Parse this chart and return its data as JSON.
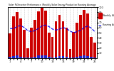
{
  "title": "Solar PV/Inverter Performance  Monthly Solar Energy Production Running Average",
  "bar_values": [
    48,
    82,
    90,
    78,
    55,
    20,
    60,
    75,
    92,
    98,
    93,
    50,
    42,
    72,
    85,
    72,
    60,
    18,
    52,
    70,
    85,
    95,
    88,
    42,
    30
  ],
  "avg_values": [
    58,
    58,
    62,
    64,
    60,
    54,
    52,
    54,
    58,
    63,
    65,
    62,
    57,
    55,
    57,
    60,
    58,
    53,
    50,
    52,
    55,
    60,
    63,
    59,
    52
  ],
  "small_values": [
    3,
    4,
    5,
    3,
    2,
    1,
    2,
    3,
    5,
    6,
    5,
    3,
    2,
    3,
    4,
    4,
    3,
    1,
    2,
    3,
    4,
    5,
    4,
    3,
    2
  ],
  "bar_color": "#cc0000",
  "small_bar_color": "#2222cc",
  "avg_line_color": "#0000ee",
  "bg_color": "#ffffff",
  "grid_color": "#999999",
  "ylim": [
    0,
    100
  ],
  "n_bars": 25,
  "legend_items": [
    "Monthly kWh",
    "Running Avg"
  ],
  "legend_colors": [
    "#cc0000",
    "#0000ee"
  ],
  "right_yticks": [
    10,
    20,
    30,
    40,
    50,
    60,
    70,
    80,
    90,
    100
  ]
}
